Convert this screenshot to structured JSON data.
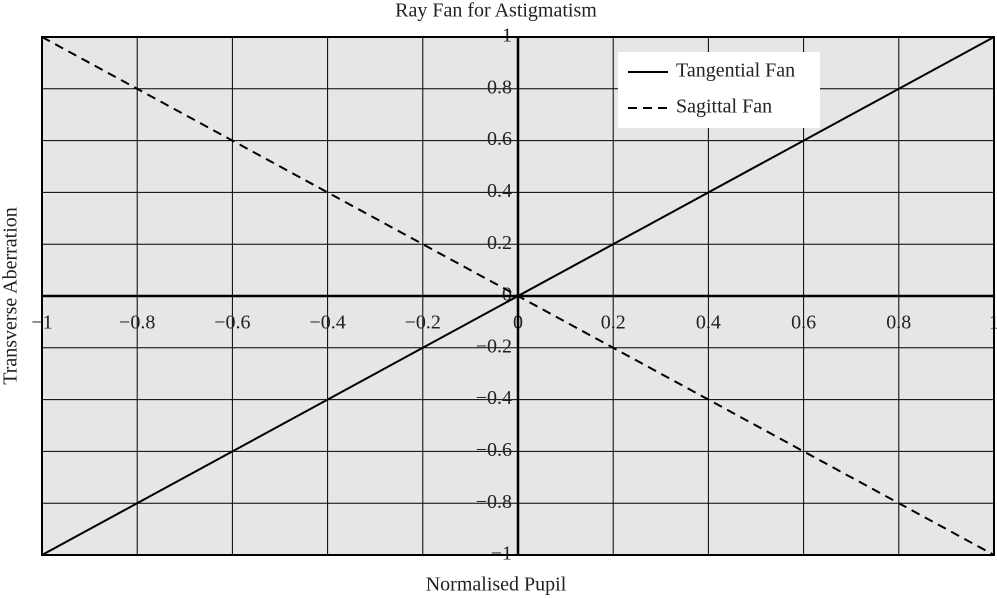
{
  "chart_data": {
    "type": "line",
    "title": "Ray Fan for Astigmatism",
    "x_label": "Normalised Pupil",
    "y_label": "Transverse Aberration",
    "x": [
      -1,
      1
    ],
    "series": [
      {
        "name": "Tangential Fan",
        "color": "#000000",
        "style": "solid",
        "values": [
          -1,
          1
        ]
      },
      {
        "name": "Sagittal Fan",
        "color": "#000000",
        "style": "dashed",
        "values": [
          1,
          -1
        ]
      }
    ],
    "xlim": [
      -1,
      1
    ],
    "ylim": [
      -1,
      1
    ],
    "xticks": [
      {
        "value": -1,
        "label": "−1"
      },
      {
        "value": -0.8,
        "label": "−0.8"
      },
      {
        "value": -0.6,
        "label": "−0.6"
      },
      {
        "value": -0.4,
        "label": "−0.4"
      },
      {
        "value": -0.2,
        "label": "−0.2"
      },
      0,
      0.2,
      0.4,
      0.6,
      0.8,
      1
    ],
    "yticks": [
      {
        "value": -1,
        "label": "−1"
      },
      {
        "value": -0.8,
        "label": "−0.8"
      },
      {
        "value": -0.6,
        "label": "−0.6"
      },
      {
        "value": -0.4,
        "label": "−0.4"
      },
      {
        "value": -0.2,
        "label": "−0.2"
      },
      0,
      0.2,
      0.4,
      0.6,
      0.8,
      1
    ],
    "grid": true,
    "background": "#e6e6e6",
    "legend": "upper right"
  }
}
